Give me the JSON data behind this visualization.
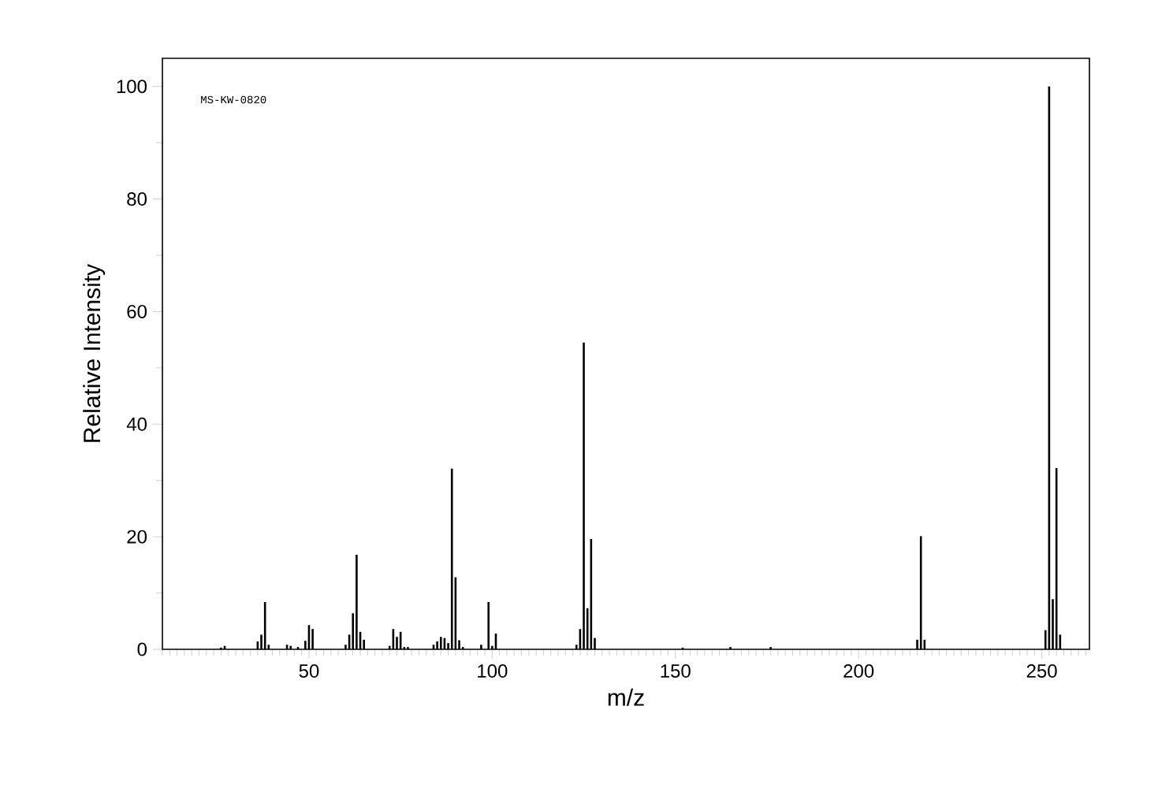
{
  "chart_data": {
    "type": "bar",
    "x": [
      26,
      27,
      36,
      37,
      38,
      39,
      44,
      45,
      47,
      49,
      50,
      51,
      60,
      61,
      62,
      63,
      64,
      65,
      72,
      73,
      74,
      75,
      76,
      77,
      84,
      85,
      86,
      87,
      88,
      89,
      90,
      91,
      92,
      97,
      99,
      100,
      101,
      123,
      124,
      125,
      126,
      127,
      128,
      152,
      165,
      176,
      216,
      217,
      218,
      251,
      252,
      253,
      254,
      255
    ],
    "values": [
      0.3,
      0.6,
      1.4,
      2.6,
      8.4,
      0.8,
      0.8,
      0.6,
      0.4,
      1.5,
      4.3,
      3.6,
      0.8,
      2.6,
      6.4,
      16.8,
      3.1,
      1.7,
      0.6,
      3.6,
      2.2,
      3.1,
      0.4,
      0.4,
      0.8,
      1.4,
      2.2,
      2.0,
      1.1,
      32.1,
      12.8,
      1.6,
      0.4,
      0.8,
      8.4,
      0.6,
      2.8,
      0.8,
      3.6,
      54.5,
      7.3,
      19.6,
      2.0,
      0.3,
      0.4,
      0.4,
      1.7,
      20.1,
      1.7,
      3.4,
      100,
      8.9,
      32.2,
      2.6
    ],
    "color": "#000000",
    "xlim": [
      10,
      263
    ],
    "xticks": [
      50,
      100,
      150,
      200,
      250
    ],
    "ylim": [
      0,
      105
    ],
    "yticks": [
      0,
      20,
      40,
      60,
      80,
      100
    ],
    "xlabel": "m/z",
    "ylabel": "Relative Intensity",
    "annotations": [
      "MS-KW-0820"
    ]
  }
}
